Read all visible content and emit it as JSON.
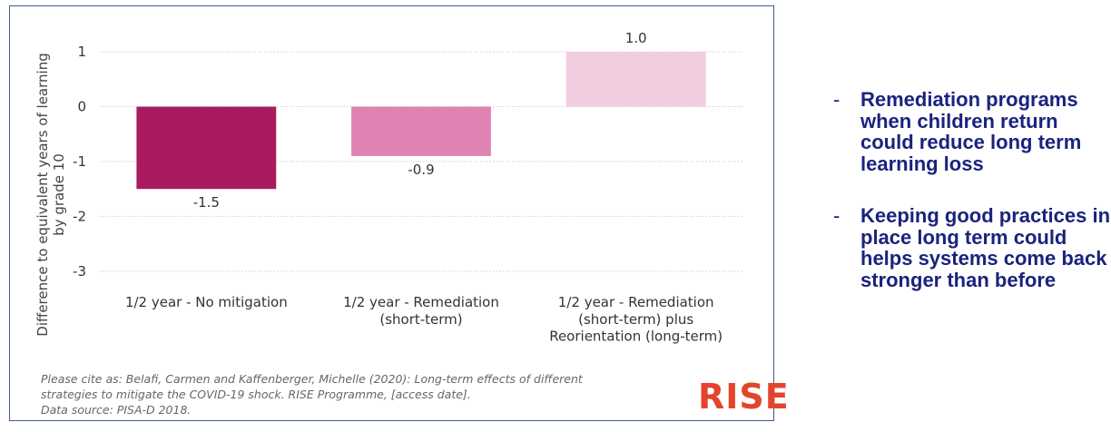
{
  "chart_data": {
    "type": "bar",
    "title": "",
    "xlabel": "",
    "ylabel": "Difference to equivalent years of learning\nby grade 10",
    "categories": [
      "1/2 year - No mitigation",
      "1/2 year - Remediation\n(short-term)",
      "1/2 year - Remediation\n(short-term) plus\nReorientation (long-term)"
    ],
    "values": [
      -1.5,
      -0.9,
      1.0
    ],
    "data_labels": [
      "-1.5",
      "-0.9",
      "1.0"
    ],
    "bar_colors": [
      "#a91a5e",
      "#e083b3",
      "#f2cde0"
    ],
    "ylim": [
      -3.3,
      1.25
    ],
    "yticks": [
      1,
      0,
      -1,
      -2,
      -3
    ],
    "grid": true
  },
  "source_note": [
    "Please cite as: Belafi, Carmen and Kaffenberger, Michelle (2020): Long-term effects of different",
    "strategies to mitigate the COVID-19 shock. RISE Programme, [access date].",
    "Data source: PISA-D 2018."
  ],
  "logo_text": "RISE",
  "logo_color": "#e3442c",
  "bullets": [
    {
      "dash": "-",
      "text": "Remediation programs when children return could reduce long term learning loss"
    },
    {
      "dash": "-",
      "text": "Keeping good practices in place long term could helps systems come back stronger than before"
    }
  ],
  "text_color": "#1a237e"
}
